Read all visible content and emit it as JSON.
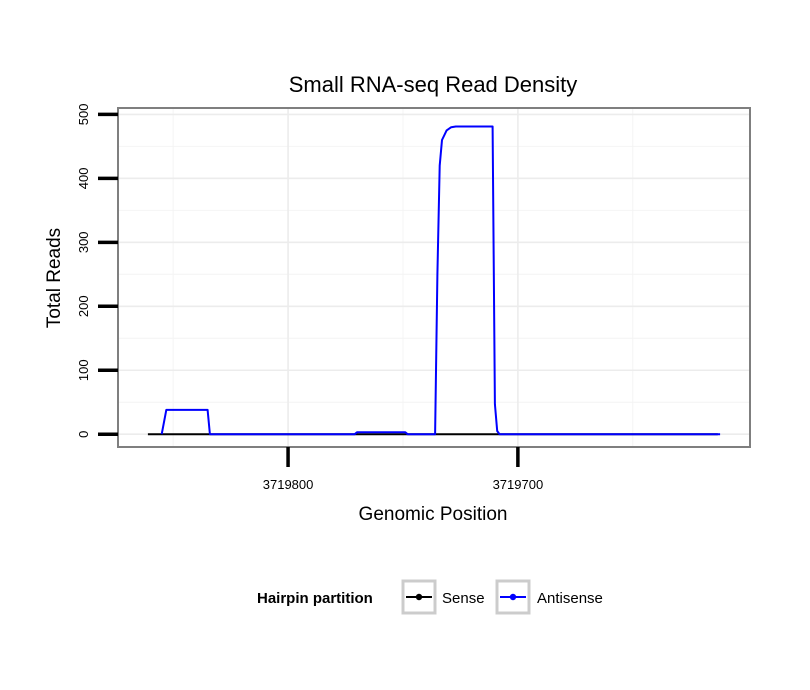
{
  "chart_data": {
    "type": "line",
    "title": "Small RNA-seq Read Density",
    "xlabel": "Genomic Position",
    "ylabel": "Total Reads",
    "x_reversed": true,
    "xlim": [
      3719874,
      3719599
    ],
    "ylim": [
      -20,
      510
    ],
    "x_ticks": [
      {
        "value": 3719800,
        "label": "3719800"
      },
      {
        "value": 3719700,
        "label": "3719700"
      }
    ],
    "y_ticks": [
      {
        "value": 0,
        "label": "0"
      },
      {
        "value": 100,
        "label": "100"
      },
      {
        "value": 200,
        "label": "200"
      },
      {
        "value": 300,
        "label": "300"
      },
      {
        "value": 400,
        "label": "400"
      },
      {
        "value": 500,
        "label": "500"
      }
    ],
    "series": [
      {
        "name": "Sense",
        "color": "#000000",
        "x": [
          3719861,
          3719613
        ],
        "y": [
          0,
          0
        ]
      },
      {
        "name": "Antisense",
        "color": "#0000ff",
        "x": [
          3719855,
          3719853,
          3719835,
          3719834,
          3719771,
          3719770,
          3719749,
          3719748,
          3719736,
          3719735,
          3719734,
          3719733,
          3719731,
          3719729,
          3719727,
          3719711,
          3719710,
          3719709,
          3719708,
          3719612
        ],
        "y": [
          0,
          38,
          38,
          0,
          0,
          3,
          3,
          0,
          0,
          250,
          420,
          460,
          475,
          480,
          481,
          481,
          47,
          5,
          0,
          0
        ]
      }
    ],
    "legend": {
      "title": "Hairpin partition",
      "placement": "bottom",
      "items": [
        "Sense",
        "Antisense"
      ]
    }
  }
}
